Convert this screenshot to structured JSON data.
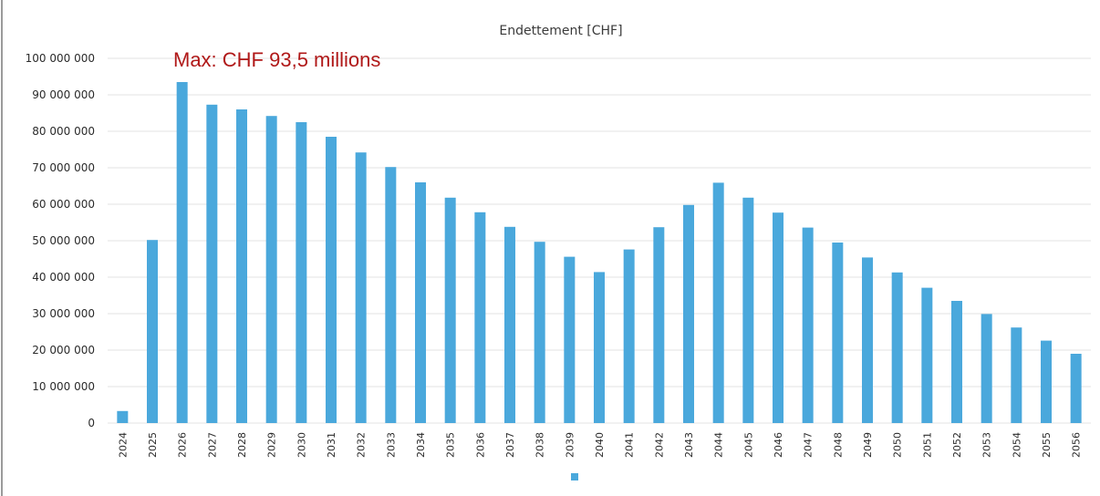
{
  "chart_data": {
    "type": "bar",
    "title": "Endettement [CHF]",
    "annotation": "Max: CHF 93,5 millions",
    "xlabel": "",
    "ylabel": "",
    "ylim": [
      0,
      100000000
    ],
    "y_ticks": [
      0,
      10000000,
      20000000,
      30000000,
      40000000,
      50000000,
      60000000,
      70000000,
      80000000,
      90000000,
      100000000
    ],
    "y_tick_labels": [
      "0",
      "10 000 000",
      "20 000 000",
      "30 000 000",
      "40 000 000",
      "50 000 000",
      "60 000 000",
      "70 000 000",
      "80 000 000",
      "90 000 000",
      "100 000 000"
    ],
    "grid": true,
    "legend": "bottom",
    "categories": [
      "2024",
      "2025",
      "2026",
      "2027",
      "2028",
      "2029",
      "2030",
      "2031",
      "2032",
      "2033",
      "2034",
      "2035",
      "2036",
      "2037",
      "2038",
      "2039",
      "2040",
      "2041",
      "2042",
      "2043",
      "2044",
      "2045",
      "2046",
      "2047",
      "2048",
      "2049",
      "2050",
      "2051",
      "2052",
      "2053",
      "2054",
      "2055",
      "2056"
    ],
    "series": [
      {
        "color": "#4aa8dc",
        "values": [
          3300000,
          50200000,
          93500000,
          87300000,
          86000000,
          84200000,
          82500000,
          78500000,
          74200000,
          70200000,
          66000000,
          61800000,
          57800000,
          53800000,
          49700000,
          45600000,
          41400000,
          47600000,
          53700000,
          59800000,
          65900000,
          61800000,
          57700000,
          53600000,
          49500000,
          45400000,
          41300000,
          37100000,
          33500000,
          29900000,
          26200000,
          22600000,
          19000000
        ]
      }
    ]
  }
}
